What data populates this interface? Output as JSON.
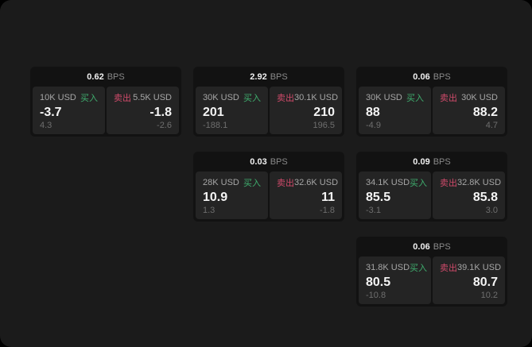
{
  "app": {
    "background_color": "#1b1b1b",
    "card_header_color": "#121212",
    "panel_color": "#242424",
    "buy_color": "#3fae6e",
    "sell_color": "#cf4a6a"
  },
  "labels": {
    "bps_unit": "BPS",
    "buy": "买入",
    "sell": "卖出"
  },
  "cards": [
    {
      "bps": "0.62",
      "buy": {
        "amount": "10K USD",
        "value": "-3.7",
        "sub": "4.3"
      },
      "sell": {
        "amount": "5.5K USD",
        "value": "-1.8",
        "sub": "-2.6"
      }
    },
    {
      "bps": "2.92",
      "buy": {
        "amount": "30K USD",
        "value": "201",
        "sub": "-188.1"
      },
      "sell": {
        "amount": "30.1K USD",
        "value": "210",
        "sub": "196.5"
      }
    },
    {
      "bps": "0.06",
      "buy": {
        "amount": "30K USD",
        "value": "88",
        "sub": "-4.9"
      },
      "sell": {
        "amount": "30K USD",
        "value": "88.2",
        "sub": "4.7"
      }
    },
    {
      "bps": "0.03",
      "buy": {
        "amount": "28K USD",
        "value": "10.9",
        "sub": "1.3"
      },
      "sell": {
        "amount": "32.6K USD",
        "value": "11",
        "sub": "-1.8"
      }
    },
    {
      "bps": "0.09",
      "buy": {
        "amount": "34.1K USD",
        "value": "85.5",
        "sub": "-3.1"
      },
      "sell": {
        "amount": "32.8K USD",
        "value": "85.8",
        "sub": "3.0"
      }
    },
    {
      "bps": "0.06",
      "buy": {
        "amount": "31.8K USD",
        "value": "80.5",
        "sub": "-10.8"
      },
      "sell": {
        "amount": "39.1K USD",
        "value": "80.7",
        "sub": "10.2"
      }
    }
  ]
}
